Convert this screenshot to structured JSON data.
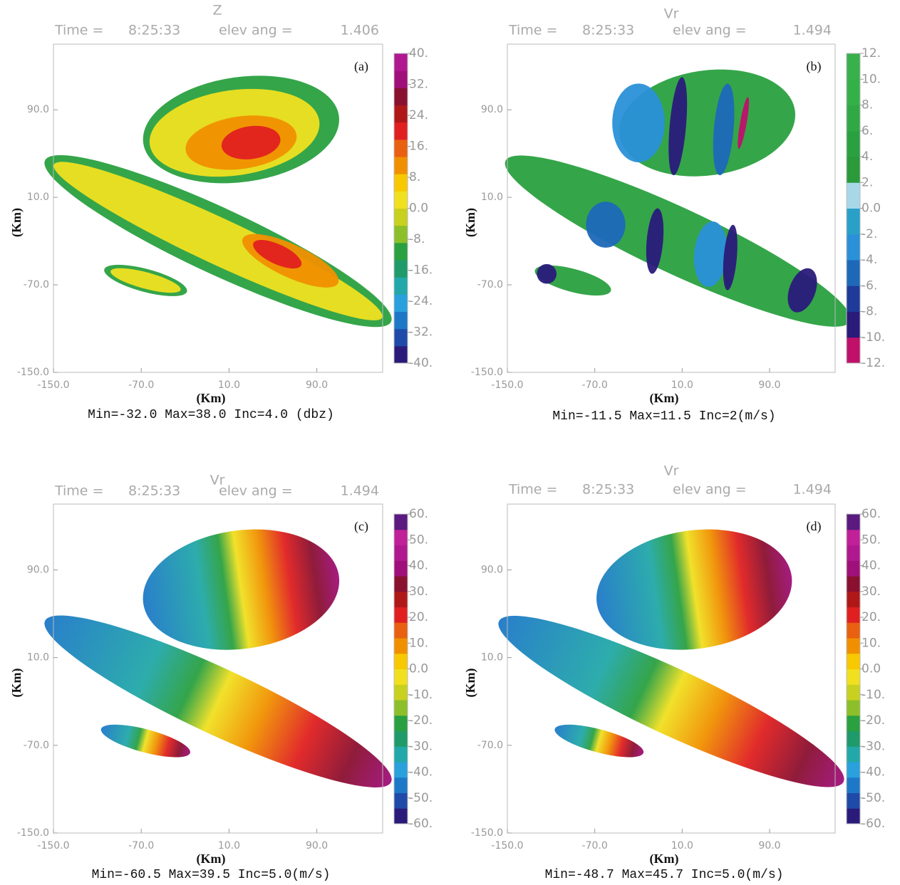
{
  "chart_data": [
    {
      "type": "heatmap",
      "title": "Z",
      "time_label": "Time =",
      "time": "8:25:33",
      "elev_label": "elev ang =",
      "elev": "1.406",
      "panel_label": "(a)",
      "x_label": "(Km)",
      "y_label": "(Km)",
      "xlim": [
        -150,
        150
      ],
      "ylim": [
        -150,
        150
      ],
      "xticks": [
        {
          "value": -150,
          "label": "-150.0"
        },
        {
          "value": -70,
          "label": "-70.0"
        },
        {
          "value": 10,
          "label": "10.0"
        },
        {
          "value": 90,
          "label": "90.0"
        }
      ],
      "yticks": [
        {
          "value": -150,
          "label": "-150.0"
        },
        {
          "value": -70,
          "label": "-70.0"
        },
        {
          "value": 10,
          "label": "10.0"
        },
        {
          "value": 90,
          "label": "90.0"
        }
      ],
      "clim": [
        -40,
        40
      ],
      "cticks": [
        {
          "value": 40,
          "label": "40."
        },
        {
          "value": 32,
          "label": "32."
        },
        {
          "value": 24,
          "label": "24."
        },
        {
          "value": 16,
          "label": "16."
        },
        {
          "value": 8,
          "label": "8."
        },
        {
          "value": 0,
          "label": "0.0"
        },
        {
          "value": -8,
          "label": "-8."
        },
        {
          "value": -16,
          "label": "-16."
        },
        {
          "value": -24,
          "label": "-24."
        },
        {
          "value": -32,
          "label": "-32."
        },
        {
          "value": -40,
          "label": "-40."
        }
      ],
      "colors": [
        "#2a1a7a",
        "#1f4aa8",
        "#1e78c8",
        "#2aa0dc",
        "#22a8a8",
        "#1f9a6a",
        "#2aa040",
        "#8cbf2a",
        "#c8d020",
        "#f0e020",
        "#f8c800",
        "#f09000",
        "#e86010",
        "#e02020",
        "#b01818",
        "#8a1030",
        "#a0107a",
        "#b01890"
      ],
      "caption": "Min=-32.0  Max=38.0  Inc=4.0 (dbz)"
    },
    {
      "type": "heatmap",
      "title": "Vr",
      "time_label": "Time =",
      "time": "8:25:33",
      "elev_label": "elev ang =",
      "elev": "1.494",
      "panel_label": "(b)",
      "x_label": "(Km)",
      "y_label": "(Km)",
      "xlim": [
        -150,
        150
      ],
      "ylim": [
        -150,
        150
      ],
      "xticks": [
        {
          "value": -150,
          "label": "-150.0"
        },
        {
          "value": -70,
          "label": "-70.0"
        },
        {
          "value": 10,
          "label": "10.0"
        },
        {
          "value": 90,
          "label": "90.0"
        }
      ],
      "yticks": [
        {
          "value": -150,
          "label": "-150.0"
        },
        {
          "value": -70,
          "label": "-70.0"
        },
        {
          "value": 10,
          "label": "10.0"
        },
        {
          "value": 90,
          "label": "90.0"
        }
      ],
      "clim": [
        -12,
        12
      ],
      "cticks": [
        {
          "value": 12,
          "label": "12."
        },
        {
          "value": 10,
          "label": "10."
        },
        {
          "value": 8,
          "label": "8."
        },
        {
          "value": 6,
          "label": "6."
        },
        {
          "value": 4,
          "label": "4."
        },
        {
          "value": 2,
          "label": "2."
        },
        {
          "value": 0,
          "label": "0.0"
        },
        {
          "value": -2,
          "label": "-2."
        },
        {
          "value": -4,
          "label": "-4."
        },
        {
          "value": -6,
          "label": "-6."
        },
        {
          "value": -8,
          "label": "-8."
        },
        {
          "value": -10,
          "label": "-10."
        },
        {
          "value": -12,
          "label": "-12."
        }
      ],
      "colors": [
        "#c0106a",
        "#2a1a7a",
        "#1f3a98",
        "#1e68b8",
        "#2a90d8",
        "#28a0c8",
        "#a8d8e8",
        "#2a9a3a",
        "#2aa040",
        "#30a844",
        "#34b048",
        "#38b04c"
      ],
      "caption": "Min=-11.5    Max=11.5  Inc=2(m/s)"
    },
    {
      "type": "heatmap",
      "title": "Vr",
      "time_label": "Time =",
      "time": "8:25:33",
      "elev_label": "elev ang =",
      "elev": "1.494",
      "panel_label": "(c)",
      "x_label": "(Km)",
      "y_label": "(Km)",
      "xlim": [
        -150,
        150
      ],
      "ylim": [
        -150,
        150
      ],
      "xticks": [
        {
          "value": -150,
          "label": "-150.0"
        },
        {
          "value": -70,
          "label": "-70.0"
        },
        {
          "value": 10,
          "label": "10.0"
        },
        {
          "value": 90,
          "label": "90.0"
        }
      ],
      "yticks": [
        {
          "value": -150,
          "label": "-150.0"
        },
        {
          "value": -70,
          "label": "-70.0"
        },
        {
          "value": 10,
          "label": "10.0"
        },
        {
          "value": 90,
          "label": "90.0"
        }
      ],
      "clim": [
        -60,
        60
      ],
      "cticks": [
        {
          "value": 60,
          "label": "60."
        },
        {
          "value": 50,
          "label": "50."
        },
        {
          "value": 40,
          "label": "40."
        },
        {
          "value": 30,
          "label": "30."
        },
        {
          "value": 20,
          "label": "20."
        },
        {
          "value": 10,
          "label": "10."
        },
        {
          "value": 0,
          "label": "0.0"
        },
        {
          "value": -10,
          "label": "-10."
        },
        {
          "value": -20,
          "label": "-20."
        },
        {
          "value": -30,
          "label": "-30."
        },
        {
          "value": -40,
          "label": "-40."
        },
        {
          "value": -50,
          "label": "-50."
        },
        {
          "value": -60,
          "label": "-60."
        }
      ],
      "colors": [
        "#2a1a7a",
        "#1f4aa8",
        "#1e78c8",
        "#2aa0dc",
        "#22a8a8",
        "#1f9a6a",
        "#2aa040",
        "#8cbf2a",
        "#c8d020",
        "#f0e020",
        "#f8c800",
        "#f09000",
        "#e86010",
        "#e02020",
        "#b01818",
        "#8a1030",
        "#a0107a",
        "#b01890",
        "#c02098",
        "#5a1a80"
      ],
      "caption": "Min=-60.5 Max=39.5 Inc=5.0(m/s)"
    },
    {
      "type": "heatmap",
      "title": "Vr",
      "time_label": "Time =",
      "time": "8:25:33",
      "elev_label": "elev ang =",
      "elev": "1.494",
      "panel_label": "(d)",
      "x_label": "(Km)",
      "y_label": "(Km)",
      "xlim": [
        -150,
        150
      ],
      "ylim": [
        -150,
        150
      ],
      "xticks": [
        {
          "value": -150,
          "label": "-150.0"
        },
        {
          "value": -70,
          "label": "-70.0"
        },
        {
          "value": 10,
          "label": "10.0"
        },
        {
          "value": 90,
          "label": "90.0"
        }
      ],
      "yticks": [
        {
          "value": -150,
          "label": "-150.0"
        },
        {
          "value": -70,
          "label": "-70.0"
        },
        {
          "value": 10,
          "label": "10.0"
        },
        {
          "value": 90,
          "label": "90.0"
        }
      ],
      "clim": [
        -60,
        60
      ],
      "cticks": [
        {
          "value": 60,
          "label": "60."
        },
        {
          "value": 50,
          "label": "50."
        },
        {
          "value": 40,
          "label": "40."
        },
        {
          "value": 30,
          "label": "30."
        },
        {
          "value": 20,
          "label": "20."
        },
        {
          "value": 10,
          "label": "10."
        },
        {
          "value": 0,
          "label": "0.0"
        },
        {
          "value": -10,
          "label": "-10."
        },
        {
          "value": -20,
          "label": "-20."
        },
        {
          "value": -30,
          "label": "-30."
        },
        {
          "value": -40,
          "label": "-40."
        },
        {
          "value": -50,
          "label": "-50."
        },
        {
          "value": -60,
          "label": "-60."
        }
      ],
      "colors": [
        "#2a1a7a",
        "#1f4aa8",
        "#1e78c8",
        "#2aa0dc",
        "#22a8a8",
        "#1f9a6a",
        "#2aa040",
        "#8cbf2a",
        "#c8d020",
        "#f0e020",
        "#f8c800",
        "#f09000",
        "#e86010",
        "#e02020",
        "#b01818",
        "#8a1030",
        "#a0107a",
        "#b01890",
        "#c02098",
        "#5a1a80"
      ],
      "caption": "Min=-48.7 Max=45.7 Inc=5.0(m/s)"
    }
  ]
}
